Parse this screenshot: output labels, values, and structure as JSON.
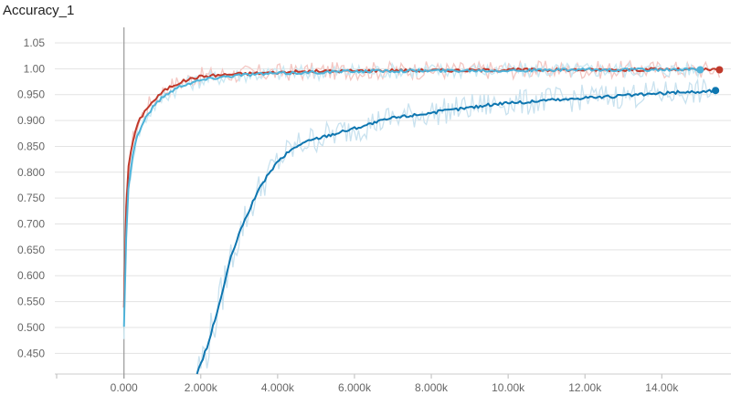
{
  "chart_data": {
    "type": "line",
    "title": "Accuracy_1",
    "xlabel": "",
    "ylabel": "",
    "xlim": [
      -1800,
      15800
    ],
    "ylim": [
      0.41,
      1.08
    ],
    "grid": true,
    "x_ticks": [
      0,
      2000,
      4000,
      6000,
      8000,
      10000,
      12000,
      14000
    ],
    "x_tick_labels": [
      "0.000",
      "2.000k",
      "4.000k",
      "6.000k",
      "8.000k",
      "10.00k",
      "12.00k",
      "14.00k"
    ],
    "y_ticks": [
      0.45,
      0.5,
      0.55,
      0.6,
      0.65,
      0.7,
      0.75,
      0.8,
      0.85,
      0.9,
      0.95,
      1.0,
      1.05
    ],
    "y_tick_labels": [
      "0.450",
      "0.500",
      "0.550",
      "0.600",
      "0.650",
      "0.700",
      "0.750",
      "0.800",
      "0.850",
      "0.900",
      "0.950",
      "1.00",
      "1.05"
    ],
    "series": [
      {
        "color": "#c0392b",
        "raw_color": "#f4c7c3",
        "x": [
          0,
          50,
          100,
          200,
          300,
          400,
          600,
          800,
          1000,
          1200,
          1500,
          1800,
          2000,
          2500,
          3000,
          4000,
          5000,
          6000,
          7000,
          8000,
          9000,
          10000,
          11000,
          12000,
          13000,
          14000,
          15000,
          15500
        ],
        "y": [
          0.54,
          0.72,
          0.8,
          0.85,
          0.88,
          0.9,
          0.925,
          0.94,
          0.955,
          0.965,
          0.975,
          0.982,
          0.985,
          0.988,
          0.99,
          0.993,
          0.995,
          0.996,
          0.997,
          0.997,
          0.997,
          0.998,
          0.998,
          0.998,
          0.998,
          0.999,
          0.998,
          0.998
        ]
      },
      {
        "color": "#4fb3d9",
        "raw_color": "#c9e8f3",
        "x": [
          0,
          50,
          100,
          200,
          300,
          400,
          600,
          800,
          1000,
          1200,
          1500,
          2000,
          2500,
          3000,
          4000,
          5000,
          6000,
          7000,
          8000,
          9000,
          10000,
          11000,
          12000,
          13000,
          14000,
          15000
        ],
        "y": [
          0.5,
          0.66,
          0.76,
          0.82,
          0.86,
          0.88,
          0.91,
          0.93,
          0.945,
          0.955,
          0.968,
          0.978,
          0.984,
          0.988,
          0.991,
          0.993,
          0.995,
          0.996,
          0.996,
          0.997,
          0.997,
          0.997,
          0.998,
          0.998,
          0.998,
          0.998
        ]
      },
      {
        "color": "#0e76b0",
        "raw_color": "#c9e2ef",
        "x": [
          1900,
          2200,
          2500,
          2800,
          3100,
          3400,
          3700,
          4000,
          4300,
          4600,
          5000,
          5500,
          6000,
          6500,
          7000,
          7500,
          8000,
          8500,
          9000,
          9500,
          10000,
          10500,
          11000,
          11500,
          12000,
          12500,
          13000,
          13500,
          14000,
          14500,
          15000,
          15400
        ],
        "y": [
          0.41,
          0.47,
          0.55,
          0.64,
          0.7,
          0.75,
          0.79,
          0.82,
          0.84,
          0.855,
          0.865,
          0.875,
          0.885,
          0.895,
          0.905,
          0.91,
          0.915,
          0.92,
          0.925,
          0.93,
          0.935,
          0.935,
          0.94,
          0.94,
          0.945,
          0.945,
          0.948,
          0.95,
          0.952,
          0.955,
          0.955,
          0.958
        ]
      }
    ]
  }
}
